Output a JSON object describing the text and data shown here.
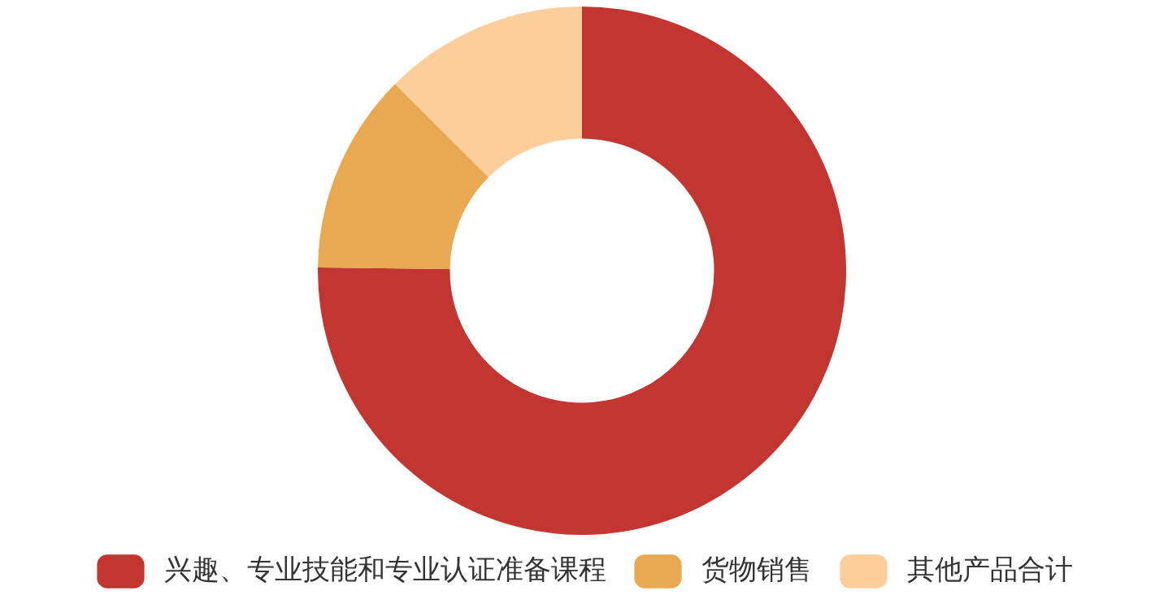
{
  "chart_data": {
    "type": "donut",
    "categories": [
      "兴趣、专业技能和专业认证准备课程",
      "货物销售",
      "其他产品合计"
    ],
    "values": [
      75.2,
      12.3,
      12.5
    ],
    "colors": [
      "#c23531",
      "#e9a953",
      "#fdcd9b"
    ],
    "legend": "bottom"
  }
}
